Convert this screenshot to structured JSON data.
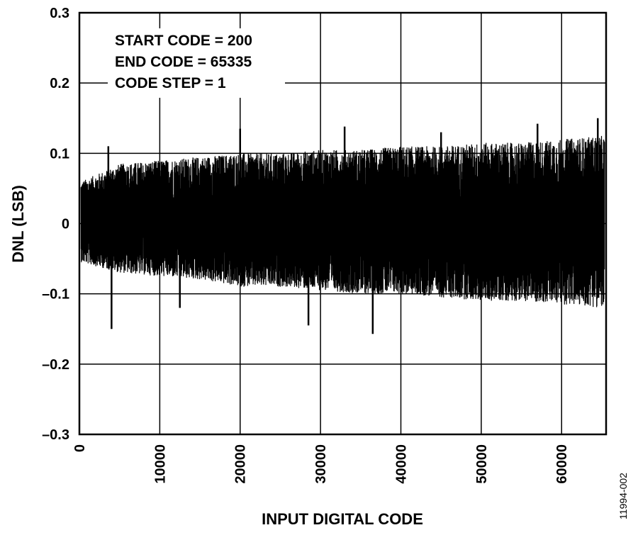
{
  "chart_data": {
    "type": "line",
    "title": "",
    "xlabel": "INPUT DIGITAL CODE",
    "ylabel": "DNL (LSB)",
    "xlim": [
      0,
      65535
    ],
    "ylim": [
      -0.3,
      0.3
    ],
    "x_ticks": [
      0,
      10000,
      20000,
      30000,
      40000,
      50000,
      60000
    ],
    "x_tick_labels": [
      "0",
      "10000",
      "20000",
      "30000",
      "40000",
      "50000",
      "60000"
    ],
    "y_ticks": [
      0.3,
      0.2,
      0.1,
      0,
      -0.1,
      -0.2,
      -0.3
    ],
    "y_tick_labels": [
      "0.3",
      "0.2",
      "0.1",
      "0",
      "–0.1",
      "–0.2",
      "–0.3"
    ],
    "grid": true,
    "annotations": [
      "START CODE = 200",
      "END CODE = 65335",
      "CODE STEP = 1"
    ],
    "series": [
      {
        "color": "#000000",
        "x_start": 200,
        "x_end": 65335,
        "x_step": 1,
        "envelope_x": [
          200,
          5000,
          10000,
          15000,
          20000,
          25000,
          30000,
          35000,
          40000,
          45000,
          50000,
          55000,
          60000,
          65335
        ],
        "envelope_max": [
          0.06,
          0.085,
          0.09,
          0.095,
          0.1,
          0.1,
          0.105,
          0.105,
          0.11,
          0.11,
          0.115,
          0.115,
          0.12,
          0.125
        ],
        "envelope_min": [
          -0.055,
          -0.07,
          -0.075,
          -0.08,
          -0.09,
          -0.09,
          -0.095,
          -0.1,
          -0.1,
          -0.105,
          -0.11,
          -0.11,
          -0.115,
          -0.12
        ],
        "peaks": [
          {
            "x": 4000,
            "y": -0.15
          },
          {
            "x": 36500,
            "y": -0.157
          },
          {
            "x": 28500,
            "y": -0.145
          },
          {
            "x": 64500,
            "y": 0.15
          },
          {
            "x": 20000,
            "y": 0.135
          },
          {
            "x": 33000,
            "y": 0.138
          },
          {
            "x": 57000,
            "y": 0.142
          },
          {
            "x": 3600,
            "y": 0.11
          },
          {
            "x": 12500,
            "y": -0.12
          },
          {
            "x": 45000,
            "y": 0.13
          }
        ]
      }
    ],
    "figure_id": "11994-002"
  }
}
